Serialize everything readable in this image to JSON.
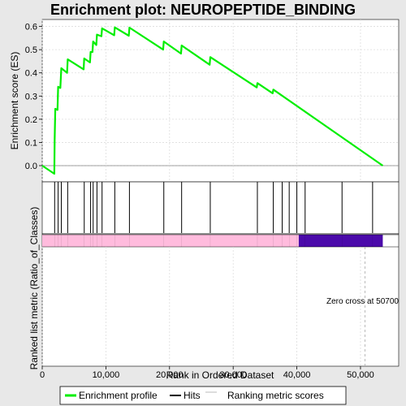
{
  "chart_data": {
    "type": "line",
    "title": "Enrichment plot: NEUROPEPTIDE_BINDING",
    "top_panel": {
      "ylabel": "Enrichment score (ES)",
      "ylim": [
        -0.07,
        0.63
      ],
      "yticks": [
        0.0,
        0.1,
        0.2,
        0.3,
        0.4,
        0.5,
        0.6
      ],
      "ytick_labels": [
        "0.0",
        "0.1",
        "0.2",
        "0.3",
        "0.4",
        "0.5",
        "0.6"
      ],
      "grid": true,
      "series": [
        {
          "name": "Enrichment profile",
          "color": "#00ee00",
          "x": [
            0,
            1900,
            1950,
            2050,
            2400,
            2500,
            2850,
            3000,
            3900,
            4000,
            6500,
            6600,
            7500,
            7600,
            7900,
            8000,
            8500,
            8600,
            9300,
            9400,
            11300,
            11400,
            13600,
            13700,
            19000,
            19100,
            21800,
            21900,
            26300,
            26400,
            33700,
            33800,
            36200,
            36300,
            53500
          ],
          "y": [
            0.0,
            -0.035,
            0.11,
            0.245,
            0.24,
            0.34,
            0.335,
            0.42,
            0.4,
            0.458,
            0.415,
            0.462,
            0.445,
            0.49,
            0.49,
            0.535,
            0.52,
            0.565,
            0.558,
            0.592,
            0.562,
            0.596,
            0.56,
            0.595,
            0.5,
            0.535,
            0.483,
            0.518,
            0.435,
            0.468,
            0.337,
            0.356,
            0.312,
            0.328,
            0.0
          ]
        }
      ]
    },
    "hits_panel": {
      "hit_positions": [
        1950,
        2500,
        3000,
        4000,
        6600,
        7600,
        8000,
        8600,
        9400,
        11400,
        13700,
        19100,
        21900,
        26400,
        33800,
        36300,
        37700,
        38800,
        40000,
        41300,
        47100,
        51900
      ]
    },
    "bottom_panel": {
      "ylabel": "Ranked list metric (Ratio_of_Classes)",
      "xlabel": "Rank in Ordered Dataset",
      "xlim": [
        0,
        56000
      ],
      "xticks": [
        0,
        10000,
        20000,
        30000,
        40000,
        50000
      ],
      "xtick_labels": [
        "0",
        "10,000",
        "20,000",
        "30,000",
        "40,000",
        "50,000"
      ],
      "annotation": "Zero cross at 50700",
      "zero_cross": 50700,
      "positive_end": 40300,
      "list_end": 53500,
      "colors": {
        "positive": "#ffbbdd",
        "negative": "#4b0aaa"
      }
    },
    "legend": {
      "placement": "bottom",
      "entries": [
        {
          "label": "Enrichment profile",
          "color": "#00ee00"
        },
        {
          "label": "Hits",
          "color": "#000000"
        },
        {
          "label": "Ranking metric scores",
          "color": "#bbbbbb"
        }
      ]
    }
  }
}
